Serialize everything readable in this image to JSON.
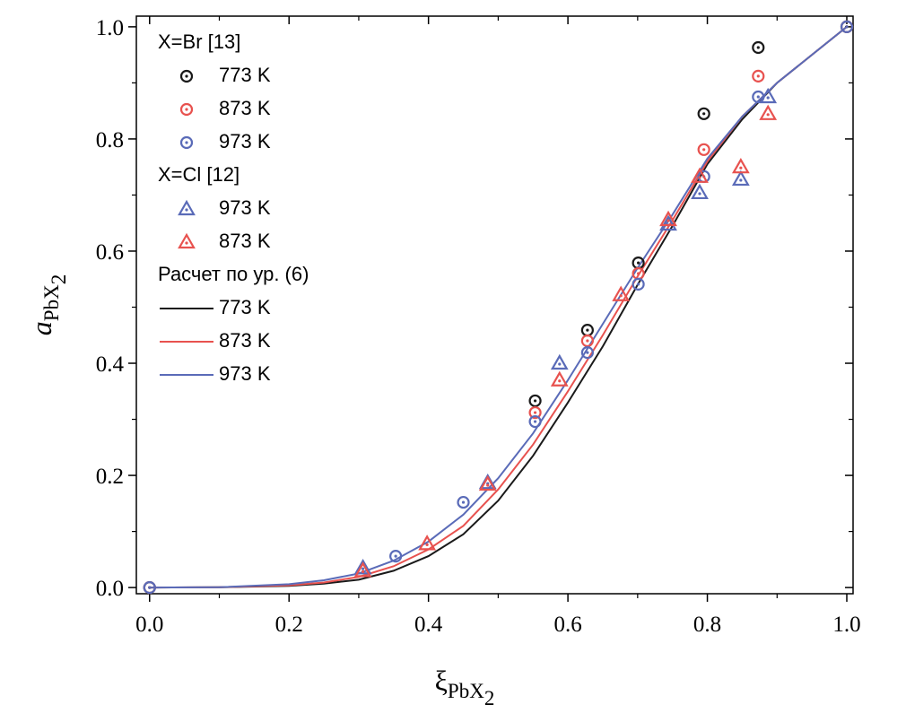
{
  "chart_data": {
    "type": "scatter",
    "xlabel": [
      "ξ",
      "PbX",
      "2"
    ],
    "ylabel": [
      "a",
      "PbX",
      "2"
    ],
    "xlim": [
      -0.019,
      1.009
    ],
    "ylim": [
      -0.011,
      1.019
    ],
    "xticks": [
      {
        "value": 0,
        "label": "0.0"
      },
      0.2,
      0.4,
      0.6,
      0.8,
      {
        "value": 1,
        "label": "1.0"
      }
    ],
    "yticks": [
      {
        "value": 0,
        "label": "0.0"
      },
      0.2,
      0.4,
      0.6,
      0.8,
      {
        "value": 1,
        "label": "1.0"
      }
    ],
    "xticks_minor": [
      0.1,
      0.3,
      0.5,
      0.7,
      0.9
    ],
    "yticks_minor": [
      0.1,
      0.3,
      0.5,
      0.7,
      0.9
    ],
    "legend": "upper left",
    "groups": [
      {
        "title": "X=Br [13]",
        "series": [
          {
            "name": "773 K",
            "color": "#1a1a1a",
            "marker": "circle",
            "x": [
              0,
              0.553,
              0.628,
              0.701,
              0.795,
              0.873,
              1.0
            ],
            "values": [
              0,
              0.333,
              0.459,
              0.579,
              0.845,
              0.963,
              1.0
            ]
          },
          {
            "name": "873 K",
            "color": "#e8524f",
            "marker": "circle",
            "x": [
              0,
              0.553,
              0.628,
              0.701,
              0.795,
              0.873,
              1.0
            ],
            "values": [
              0,
              0.312,
              0.44,
              0.56,
              0.781,
              0.912,
              1.0
            ]
          },
          {
            "name": "973 K",
            "color": "#5a6bb8",
            "marker": "circle",
            "x": [
              0,
              0.353,
              0.45,
              0.553,
              0.628,
              0.701,
              0.795,
              0.873,
              1.0
            ],
            "values": [
              0,
              0.056,
              0.152,
              0.296,
              0.419,
              0.541,
              0.733,
              0.875,
              1.0
            ]
          }
        ]
      },
      {
        "title": "X=Cl [12]",
        "series": [
          {
            "name": "973 K",
            "color": "#5a6bb8",
            "marker": "triangle",
            "x": [
              0.306,
              0.485,
              0.588,
              0.744,
              0.789,
              0.848,
              0.887
            ],
            "values": [
              0.035,
              0.187,
              0.4,
              0.648,
              0.704,
              0.728,
              0.875
            ]
          },
          {
            "name": "873 K",
            "color": "#e8524f",
            "marker": "triangle",
            "x": [
              0.306,
              0.398,
              0.485,
              0.588,
              0.676,
              0.744,
              0.789,
              0.848,
              0.887
            ],
            "values": [
              0.03,
              0.078,
              0.184,
              0.37,
              0.522,
              0.656,
              0.733,
              0.75,
              0.845
            ]
          }
        ]
      },
      {
        "title": "Расчет по ур. (6)",
        "series": [
          {
            "name": "773 K",
            "color": "#1a1a1a",
            "marker": "line",
            "x": [
              0,
              0.1,
              0.2,
              0.25,
              0.3,
              0.35,
              0.4,
              0.45,
              0.5,
              0.55,
              0.6,
              0.65,
              0.7,
              0.75,
              0.8,
              0.85,
              0.9,
              0.95,
              1.0
            ],
            "values": [
              0,
              0.0005,
              0.003,
              0.007,
              0.014,
              0.03,
              0.056,
              0.095,
              0.155,
              0.235,
              0.33,
              0.43,
              0.54,
              0.645,
              0.755,
              0.835,
              0.9,
              0.95,
              1.0
            ]
          },
          {
            "name": "873 K",
            "color": "#e8524f",
            "marker": "line",
            "x": [
              0,
              0.1,
              0.2,
              0.25,
              0.3,
              0.35,
              0.4,
              0.45,
              0.5,
              0.55,
              0.6,
              0.65,
              0.7,
              0.75,
              0.8,
              0.85,
              0.9,
              0.95,
              1.0
            ],
            "values": [
              0,
              0.0005,
              0.004,
              0.009,
              0.019,
              0.038,
              0.068,
              0.11,
              0.175,
              0.255,
              0.35,
              0.45,
              0.555,
              0.655,
              0.76,
              0.84,
              0.9,
              0.95,
              1.0
            ]
          },
          {
            "name": "973 K",
            "color": "#5a6bb8",
            "marker": "line",
            "x": [
              0,
              0.1,
              0.2,
              0.25,
              0.3,
              0.35,
              0.4,
              0.45,
              0.5,
              0.55,
              0.6,
              0.65,
              0.7,
              0.75,
              0.8,
              0.85,
              0.9,
              0.95,
              1.0
            ],
            "values": [
              0,
              0.0005,
              0.006,
              0.013,
              0.025,
              0.048,
              0.082,
              0.13,
              0.195,
              0.275,
              0.37,
              0.47,
              0.57,
              0.665,
              0.765,
              0.84,
              0.9,
              0.95,
              1.0
            ]
          }
        ]
      }
    ]
  }
}
